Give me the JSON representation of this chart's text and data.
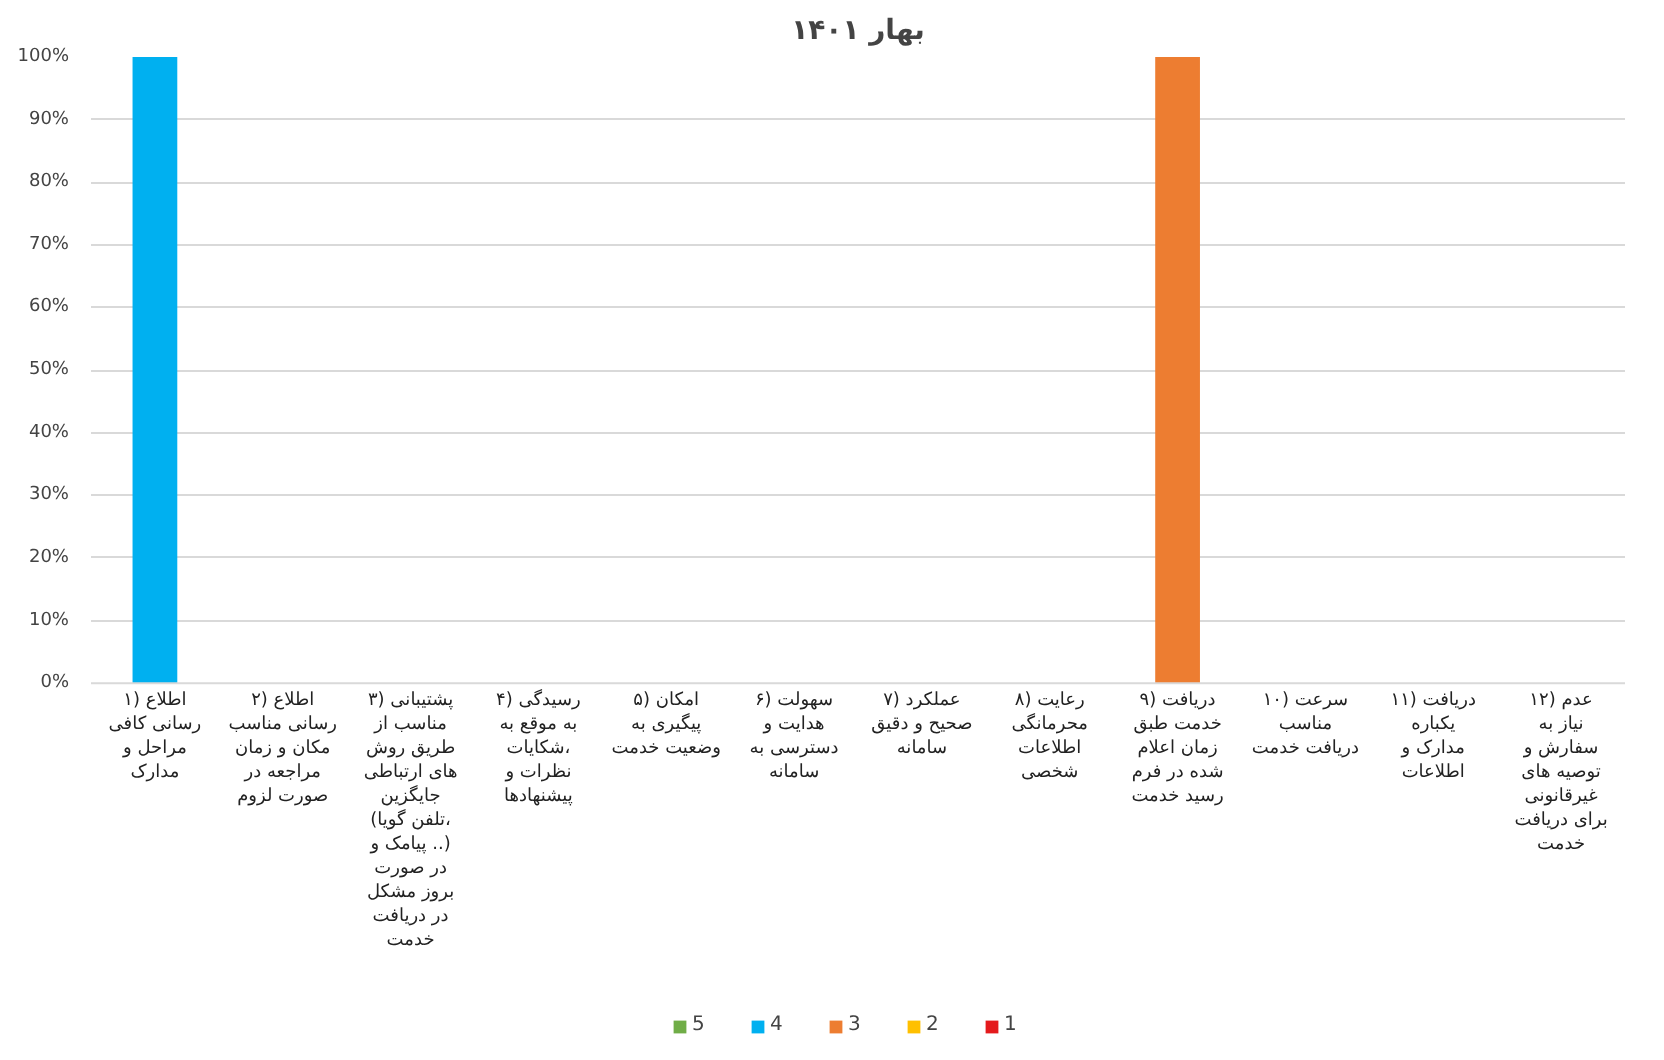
{
  "chart_data": {
    "type": "bar",
    "title": "بهار ۱۴۰۱",
    "categories": [
      "۱) اطلاع رسانی کافی مراحل و مدارک",
      "۲) اطلاع رسانی مناسب مکان و زمان مراجعه در صورت لزوم",
      "۳) پشتیبانی مناسب از طریق روش های ارتباطی جایگزین (تلفن گویا، پیامک و ..) در صورت بروز مشکل در دریافت خدمت",
      "۴) رسیدگی به موقع به شکایات، نظرات و پیشنهادها",
      "۵) امکان پیگیری به وضعیت خدمت",
      "۶) سهولت هدایت و دسترسی به سامانه",
      "۷) عملکرد صحیح و دقیق سامانه",
      "۸) رعایت محرمانگی اطلاعات شخصی",
      "۹) دریافت خدمت طبق زمان اعلام شده در فرم رسید خدمت",
      "۱۰) سرعت مناسب دریافت خدمت",
      "۱۱) دریافت یکباره مدارک و اطلاعات",
      "۱۲) عدم نیاز به سفارش و توصیه های غیرقانونی برای دریافت خدمت"
    ],
    "series": [
      {
        "name": "1",
        "color": "#e41a1c",
        "values": [
          0,
          0,
          0,
          0,
          0,
          0,
          0,
          0,
          0,
          0,
          0,
          0
        ]
      },
      {
        "name": "2",
        "color": "#ffc000",
        "values": [
          0,
          0,
          0,
          0,
          0,
          0,
          0,
          0,
          0,
          0,
          0,
          0
        ]
      },
      {
        "name": "3",
        "color": "#ed7d31",
        "values": [
          0,
          0,
          0,
          0,
          0,
          0,
          0,
          0,
          100,
          0,
          0,
          0
        ]
      },
      {
        "name": "4",
        "color": "#00b0f0",
        "values": [
          100,
          0,
          0,
          0,
          0,
          0,
          0,
          0,
          0,
          0,
          0,
          0
        ]
      },
      {
        "name": "5",
        "color": "#70ad47",
        "values": [
          0,
          0,
          0,
          0,
          0,
          0,
          0,
          0,
          0,
          0,
          0,
          0
        ]
      }
    ],
    "ylim": [
      0,
      100
    ],
    "yticks": [
      {
        "value": 0,
        "label": "0%"
      },
      {
        "value": 10,
        "label": "10%"
      },
      {
        "value": 20,
        "label": "20%"
      },
      {
        "value": 30,
        "label": "30%"
      },
      {
        "value": 40,
        "label": "40%"
      },
      {
        "value": 50,
        "label": "50%"
      },
      {
        "value": 60,
        "label": "60%"
      },
      {
        "value": 70,
        "label": "70%"
      },
      {
        "value": 80,
        "label": "80%"
      },
      {
        "value": 90,
        "label": "90%"
      },
      {
        "value": 100,
        "label": "100%"
      }
    ],
    "grid": "y",
    "legend": "bottom"
  }
}
